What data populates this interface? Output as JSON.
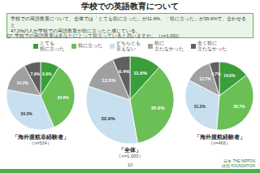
{
  "title": "学校での英語教育について",
  "subtitle": "学校での英語教育について、全体では「とても役に立った」が11.6%、「役に立った」が35.6%で、合わせると\n47.2%の人が学校での英語教育が役に立ったと感じている。",
  "annotations": [
    "Q7  学校での英語教育はあなたにとって役立っていると思いますか。（n=1,000）",
    "10",
    "日本 THE NIPPON\n財団 FOUNDATION"
  ],
  "legend": "top",
  "chart_data": [
    {
      "type": "pie",
      "title": "「海外渡航非経験者」",
      "subtitle": "（n=534）",
      "categories": [
        "とても\n役に立った",
        "役に立った",
        "どちらとも\n言えない",
        "役に\n立たなかった",
        "全く役に\n立たなかった"
      ],
      "values": [
        9.0,
        34.6,
        34.3,
        14.2,
        7.9
      ],
      "value_labels": [
        "9.0%",
        "34.6%",
        "34.3%",
        "14.2%",
        "7.9%"
      ],
      "colors": [
        "#3a9e3a",
        "#6abf55",
        "#c8dff0",
        "#a0a0a0",
        "#606060"
      ],
      "data_labels": true
    },
    {
      "type": "pie",
      "title": "「全体」",
      "subtitle": "（n=1,000）",
      "categories": [
        "とても\n役に立った",
        "役に立った",
        "どちらとも\n言えない",
        "役に\n立たなかった",
        "全く役に\n立たなかった"
      ],
      "values": [
        11.6,
        35.6,
        32.9,
        13.5,
        6.4
      ],
      "value_labels": [
        "11.6%",
        "35.6%",
        "32.9%",
        "13.5%",
        "6.4%"
      ],
      "colors": [
        "#3a9e3a",
        "#6abf55",
        "#c8dff0",
        "#a0a0a0",
        "#606060"
      ],
      "data_labels": true
    },
    {
      "type": "pie",
      "title": "「海外渡航経験者」",
      "subtitle": "（n=466）",
      "categories": [
        "とても\n役に立った",
        "役に立った",
        "どちらとも\n言えない",
        "役に\n立たなかった",
        "全く役に\n立たなかった"
      ],
      "values": [
        14.6,
        36.7,
        31.3,
        12.7,
        4.7
      ],
      "value_labels": [
        "14.6%",
        "36.7%",
        "31.3%",
        "12.7%",
        "4.7%"
      ],
      "colors": [
        "#3a9e3a",
        "#6abf55",
        "#c8dff0",
        "#a0a0a0",
        "#606060"
      ],
      "data_labels": true
    }
  ]
}
